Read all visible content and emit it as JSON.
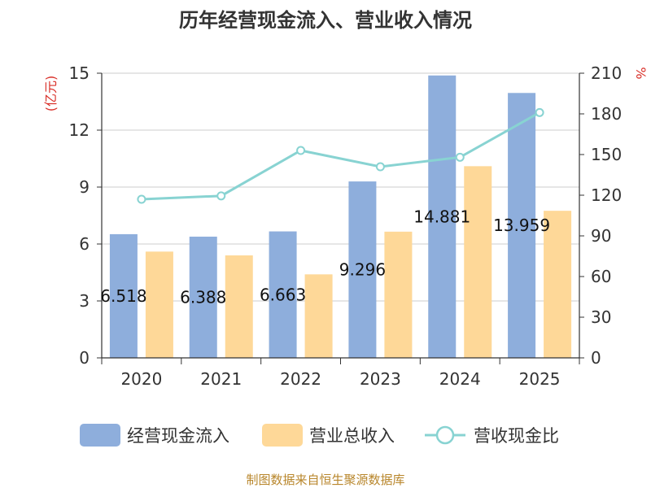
{
  "chart_data": {
    "type": "bar",
    "title": "历年经营现金流入、营业收入情况",
    "categories": [
      "2020",
      "2021",
      "2022",
      "2023",
      "2024",
      "2025"
    ],
    "y_left": {
      "unit": "(亿元)",
      "range": [
        0,
        15
      ],
      "ticks": [
        "0",
        "3",
        "6",
        "9",
        "12",
        "15"
      ]
    },
    "y_right": {
      "unit": "%",
      "range": [
        0,
        210
      ],
      "ticks": [
        "0",
        "30",
        "60",
        "90",
        "120",
        "150",
        "180",
        "210"
      ]
    },
    "grid": true,
    "legend_position": "bottom",
    "series": [
      {
        "name": "经营现金流入",
        "kind": "bar",
        "axis": "left",
        "color": "#8eaedc",
        "values": [
          6.518,
          6.388,
          6.663,
          9.296,
          14.881,
          13.959
        ],
        "labels": [
          "6.518",
          "6.388",
          "6.663",
          "9.296",
          "14.881",
          "13.959"
        ]
      },
      {
        "name": "营业总收入",
        "kind": "bar",
        "axis": "left",
        "color": "#fed898",
        "values": [
          5.6,
          5.4,
          4.4,
          6.65,
          10.1,
          7.75
        ]
      },
      {
        "name": "营收现金比",
        "kind": "line",
        "axis": "right",
        "color": "#88d3d2",
        "values": [
          117,
          119.5,
          153,
          141,
          148,
          181
        ]
      }
    ],
    "source": "制图数据来自恒生聚源数据库"
  }
}
